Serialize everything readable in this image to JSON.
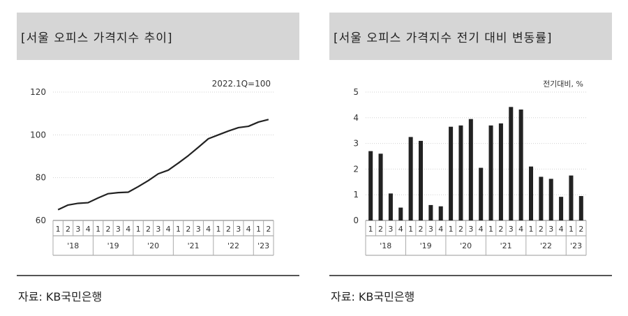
{
  "panels": [
    {
      "title": "[서울 오피스 가격지수 추이]",
      "source": "자료: KB국민은행"
    },
    {
      "title": "[서울 오피스 가격지수 전기 대비 변동률]",
      "source": "자료: KB국민은행"
    }
  ],
  "chart_data": [
    {
      "type": "line",
      "title": "서울 오피스 가격지수 추이",
      "annotation": "2022.1Q=100",
      "ylim": [
        60,
        120
      ],
      "yticks": [
        60,
        80,
        100,
        120
      ],
      "grid": true,
      "quarters": [
        "1",
        "2",
        "3",
        "4",
        "1",
        "2",
        "3",
        "4",
        "1",
        "2",
        "3",
        "4",
        "1",
        "2",
        "3",
        "4",
        "1",
        "2",
        "3",
        "4",
        "1",
        "2"
      ],
      "years": [
        {
          "label": "'18",
          "span": 4
        },
        {
          "label": "'19",
          "span": 4
        },
        {
          "label": "'20",
          "span": 4
        },
        {
          "label": "'21",
          "span": 4
        },
        {
          "label": "'22",
          "span": 4
        },
        {
          "label": "'23",
          "span": 2
        }
      ],
      "values": [
        65.0,
        67.2,
        68.0,
        68.3,
        70.5,
        72.5,
        73.0,
        73.2,
        75.8,
        78.6,
        81.8,
        83.5,
        86.8,
        90.3,
        94.2,
        98.2,
        100.0,
        101.8,
        103.4,
        104.0,
        106.0,
        107.2
      ]
    },
    {
      "type": "bar",
      "title": "서울 오피스 가격지수 전기 대비 변동률",
      "annotation": "전기대비, %",
      "ylim": [
        0,
        5
      ],
      "yticks": [
        0,
        1,
        2,
        3,
        4,
        5
      ],
      "grid": true,
      "quarters": [
        "1",
        "2",
        "3",
        "4",
        "1",
        "2",
        "3",
        "4",
        "1",
        "2",
        "3",
        "4",
        "1",
        "2",
        "3",
        "4",
        "1",
        "2",
        "3",
        "4",
        "1",
        "2"
      ],
      "years": [
        {
          "label": "'18",
          "span": 4
        },
        {
          "label": "'19",
          "span": 4
        },
        {
          "label": "'20",
          "span": 4
        },
        {
          "label": "'21",
          "span": 4
        },
        {
          "label": "'22",
          "span": 4
        },
        {
          "label": "'23",
          "span": 2
        }
      ],
      "values": [
        2.7,
        2.6,
        1.05,
        0.5,
        3.25,
        3.1,
        0.6,
        0.55,
        3.65,
        3.7,
        3.95,
        2.05,
        3.7,
        3.78,
        4.42,
        4.32,
        2.1,
        1.7,
        1.62,
        0.92,
        1.75,
        0.95
      ]
    }
  ]
}
